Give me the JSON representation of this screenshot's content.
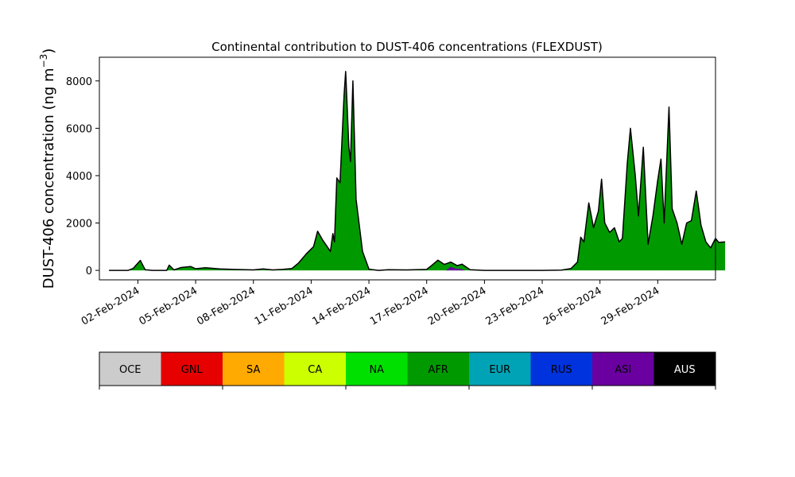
{
  "chart_data": {
    "type": "area",
    "title": "Continental contribution to DUST-406 concentrations (FLEXDUST)",
    "ylabel_main": "DUST-406 concentration (ng m",
    "ylabel_sup": "−3",
    "ylabel_close": ")",
    "xlabel": "",
    "ylim": [
      -400,
      9000
    ],
    "yticks": [
      0,
      2000,
      4000,
      6000,
      8000
    ],
    "ytick_labels": [
      "0",
      "2000",
      "4000",
      "6000",
      "8000"
    ],
    "x_start": "2024-01-31",
    "x_end": "2024-03-03",
    "xticks": [
      "2024-02-02",
      "2024-02-05",
      "2024-02-08",
      "2024-02-11",
      "2024-02-14",
      "2024-02-17",
      "2024-02-20",
      "2024-02-23",
      "2024-02-26",
      "2024-02-29"
    ],
    "xtick_labels": [
      "02-Feb-2024",
      "05-Feb-2024",
      "08-Feb-2024",
      "11-Feb-2024",
      "14-Feb-2024",
      "17-Feb-2024",
      "20-Feb-2024",
      "23-Feb-2024",
      "26-Feb-2024",
      "29-Feb-2024"
    ],
    "series": [
      {
        "name": "AFR",
        "color": "#009a00",
        "points": [
          [
            "2024-01-31T12:00",
            0
          ],
          [
            "2024-02-01T12:00",
            0
          ],
          [
            "2024-02-01T18:00",
            80
          ],
          [
            "2024-02-02T03:00",
            420
          ],
          [
            "2024-02-02T09:00",
            30
          ],
          [
            "2024-02-02T18:00",
            0
          ],
          [
            "2024-02-03T12:00",
            0
          ],
          [
            "2024-02-03T15:00",
            220
          ],
          [
            "2024-02-03T21:00",
            20
          ],
          [
            "2024-02-04T06:00",
            120
          ],
          [
            "2024-02-04T18:00",
            160
          ],
          [
            "2024-02-05T00:00",
            70
          ],
          [
            "2024-02-05T12:00",
            110
          ],
          [
            "2024-02-06T06:00",
            60
          ],
          [
            "2024-02-07T00:00",
            40
          ],
          [
            "2024-02-08T00:00",
            20
          ],
          [
            "2024-02-08T12:00",
            60
          ],
          [
            "2024-02-09T00:00",
            20
          ],
          [
            "2024-02-09T12:00",
            40
          ],
          [
            "2024-02-10T00:00",
            80
          ],
          [
            "2024-02-10T08:00",
            300
          ],
          [
            "2024-02-10T18:00",
            700
          ],
          [
            "2024-02-11T03:00",
            1000
          ],
          [
            "2024-02-11T08:00",
            1650
          ],
          [
            "2024-02-11T14:00",
            1300
          ],
          [
            "2024-02-11T20:00",
            1000
          ],
          [
            "2024-02-12T00:00",
            800
          ],
          [
            "2024-02-12T03:00",
            1550
          ],
          [
            "2024-02-12T05:00",
            1200
          ],
          [
            "2024-02-12T08:00",
            3900
          ],
          [
            "2024-02-12T12:00",
            3700
          ],
          [
            "2024-02-12T17:00",
            7400
          ],
          [
            "2024-02-12T19:00",
            8400
          ],
          [
            "2024-02-12T23:00",
            5200
          ],
          [
            "2024-02-13T01:00",
            4600
          ],
          [
            "2024-02-13T04:00",
            8000
          ],
          [
            "2024-02-13T08:00",
            3000
          ],
          [
            "2024-02-13T16:00",
            800
          ],
          [
            "2024-02-14T00:00",
            50
          ],
          [
            "2024-02-14T12:00",
            0
          ],
          [
            "2024-02-15T00:00",
            30
          ],
          [
            "2024-02-16T00:00",
            20
          ],
          [
            "2024-02-17T00:00",
            40
          ],
          [
            "2024-02-17T06:00",
            200
          ],
          [
            "2024-02-17T14:00",
            430
          ],
          [
            "2024-02-17T22:00",
            250
          ],
          [
            "2024-02-18T06:00",
            350
          ],
          [
            "2024-02-18T14:00",
            200
          ],
          [
            "2024-02-18T20:00",
            260
          ],
          [
            "2024-02-19T06:00",
            30
          ],
          [
            "2024-02-20T00:00",
            0
          ],
          [
            "2024-02-21T00:00",
            0
          ],
          [
            "2024-02-22T00:00",
            0
          ],
          [
            "2024-02-23T00:00",
            0
          ],
          [
            "2024-02-24T00:00",
            10
          ],
          [
            "2024-02-24T12:00",
            80
          ],
          [
            "2024-02-24T20:00",
            350
          ],
          [
            "2024-02-25T00:00",
            1400
          ],
          [
            "2024-02-25T04:00",
            1200
          ],
          [
            "2024-02-25T10:00",
            2850
          ],
          [
            "2024-02-25T16:00",
            1800
          ],
          [
            "2024-02-25T22:00",
            2500
          ],
          [
            "2024-02-26T02:00",
            3850
          ],
          [
            "2024-02-26T06:00",
            2000
          ],
          [
            "2024-02-26T12:00",
            1600
          ],
          [
            "2024-02-26T18:00",
            1800
          ],
          [
            "2024-02-27T00:00",
            1200
          ],
          [
            "2024-02-27T04:00",
            1350
          ],
          [
            "2024-02-27T10:00",
            4500
          ],
          [
            "2024-02-27T14:00",
            6000
          ],
          [
            "2024-02-27T20:00",
            4000
          ],
          [
            "2024-02-28T00:00",
            2300
          ],
          [
            "2024-02-28T06:00",
            5200
          ],
          [
            "2024-02-28T12:00",
            1100
          ],
          [
            "2024-02-28T18:00",
            2300
          ],
          [
            "2024-02-29T00:00",
            3800
          ],
          [
            "2024-02-29T04:00",
            4700
          ],
          [
            "2024-02-29T08:00",
            2000
          ],
          [
            "2024-02-29T14:00",
            6900
          ],
          [
            "2024-02-29T18:00",
            2600
          ],
          [
            "2024-03-01T00:00",
            2000
          ],
          [
            "2024-03-01T06:00",
            1100
          ],
          [
            "2024-03-01T12:00",
            2000
          ],
          [
            "2024-03-01T18:00",
            2100
          ],
          [
            "2024-03-02T00:00",
            3350
          ],
          [
            "2024-03-02T06:00",
            1900
          ],
          [
            "2024-03-02T12:00",
            1200
          ],
          [
            "2024-03-02T18:00",
            950
          ],
          [
            "2024-03-03T00:00",
            1350
          ],
          [
            "2024-03-03T04:00",
            1180
          ],
          [
            "2024-03-03T12:00",
            1200
          ]
        ]
      },
      {
        "name": "ASI",
        "color": "#6a00a0",
        "points": [
          [
            "2024-02-18T00:00",
            0
          ],
          [
            "2024-02-18T06:00",
            150
          ],
          [
            "2024-02-18T12:00",
            80
          ],
          [
            "2024-02-18T18:00",
            60
          ],
          [
            "2024-02-19T00:00",
            0
          ]
        ]
      }
    ],
    "legend": {
      "placement": "bottom",
      "items": [
        {
          "label": "OCE",
          "color": "#cccccc",
          "text_color": "#000000"
        },
        {
          "label": "GNL",
          "color": "#e60000",
          "text_color": "#000000"
        },
        {
          "label": "SA",
          "color": "#ffaa00",
          "text_color": "#000000"
        },
        {
          "label": "CA",
          "color": "#ccff00",
          "text_color": "#000000"
        },
        {
          "label": "NA",
          "color": "#00e000",
          "text_color": "#000000"
        },
        {
          "label": "AFR",
          "color": "#009a00",
          "text_color": "#000000"
        },
        {
          "label": "EUR",
          "color": "#00a3b5",
          "text_color": "#000000"
        },
        {
          "label": "RUS",
          "color": "#0033dd",
          "text_color": "#000000"
        },
        {
          "label": "ASI",
          "color": "#6a00a0",
          "text_color": "#000000"
        },
        {
          "label": "AUS",
          "color": "#000000",
          "text_color": "#ffffff"
        }
      ]
    },
    "grid": false
  }
}
